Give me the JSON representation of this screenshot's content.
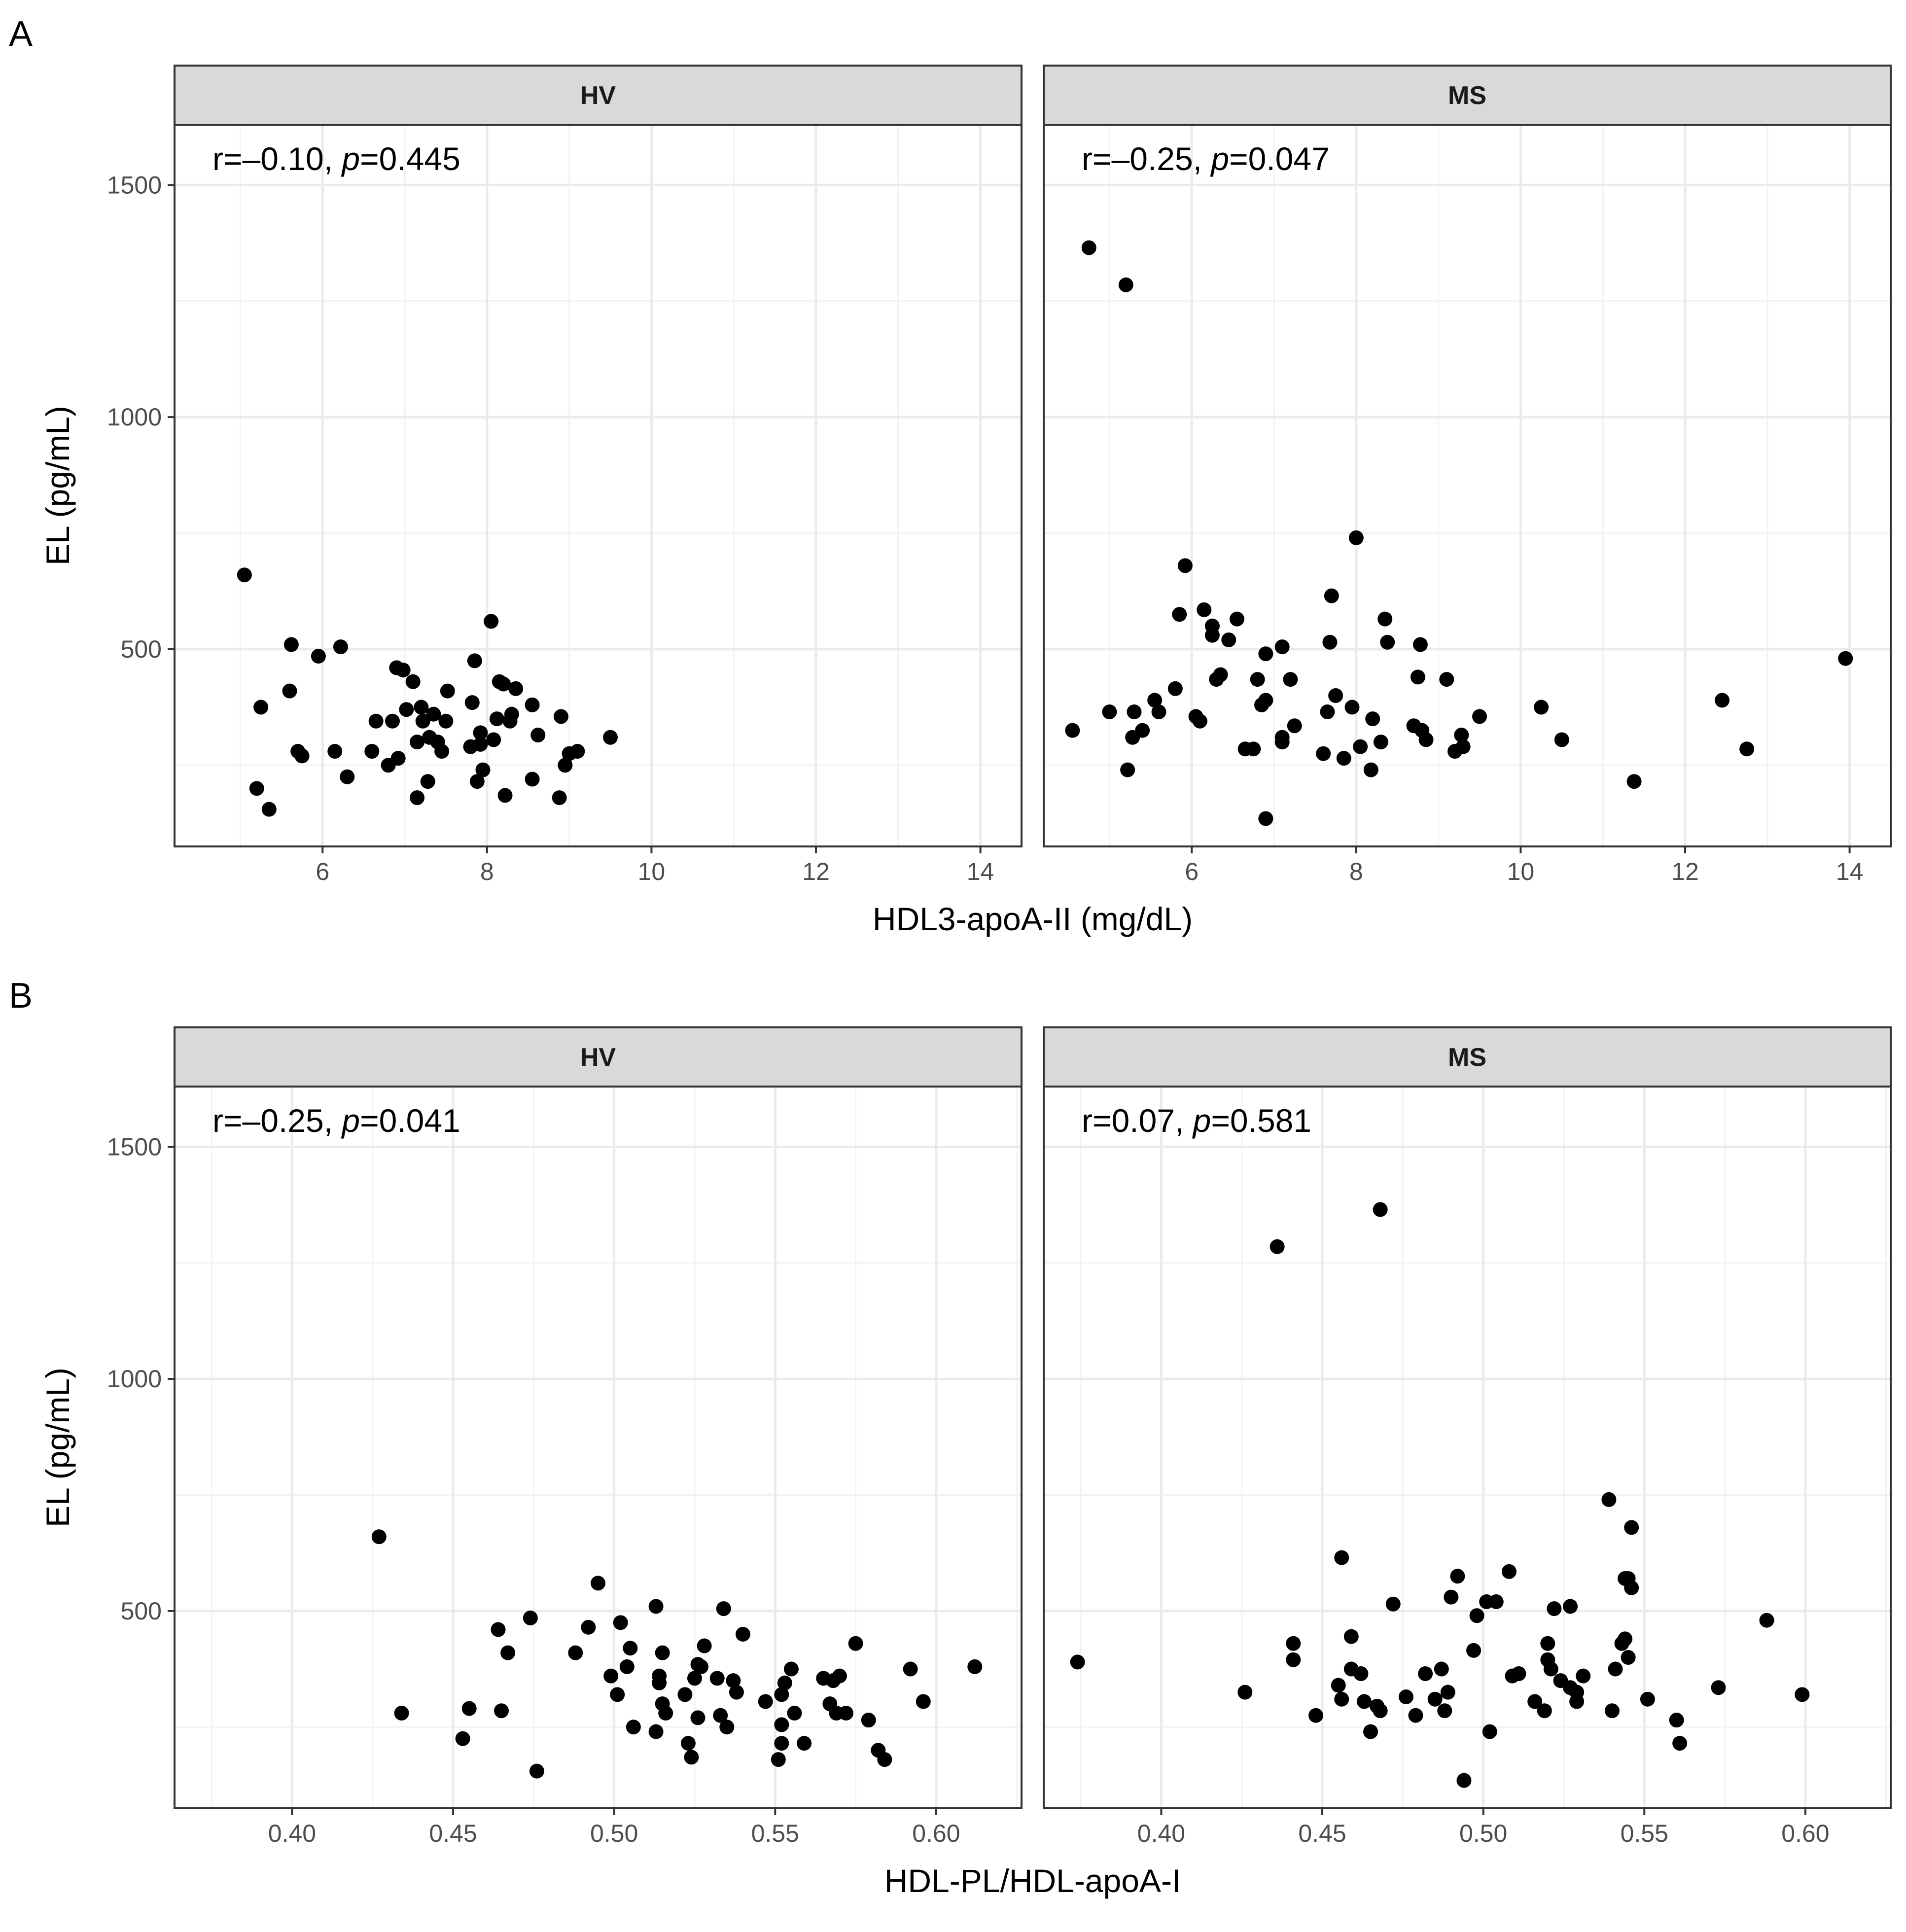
{
  "chart_data": [
    {
      "type": "scatter",
      "panel_label": "A",
      "xlabel": "HDL3-apoA-II (mg/dL)",
      "ylabel": "EL (pg/mL)",
      "xlim": [
        4.2,
        14.5
      ],
      "ylim": [
        75,
        1630
      ],
      "x_ticks": [
        6,
        8,
        10,
        12,
        14
      ],
      "x_tick_labels": [
        "6",
        "8",
        "10",
        "12",
        "14"
      ],
      "y_ticks": [
        500,
        1000,
        1500
      ],
      "y_tick_labels": [
        "500",
        "1000",
        "1500"
      ],
      "grid": true,
      "facets": [
        {
          "name": "HV",
          "annotation": {
            "prefix": "r=–0.10, ",
            "p_symbol": "p",
            "suffix": "=0.445"
          },
          "points": [
            [
              5.05,
              660
            ],
            [
              5.2,
              200
            ],
            [
              5.25,
              375
            ],
            [
              5.35,
              155
            ],
            [
              5.6,
              410
            ],
            [
              5.62,
              510
            ],
            [
              5.7,
              280
            ],
            [
              5.75,
              270
            ],
            [
              5.95,
              485
            ],
            [
              6.15,
              280
            ],
            [
              6.22,
              505
            ],
            [
              6.3,
              225
            ],
            [
              6.6,
              280
            ],
            [
              6.65,
              345
            ],
            [
              6.8,
              250
            ],
            [
              6.85,
              345
            ],
            [
              6.9,
              460
            ],
            [
              6.92,
              265
            ],
            [
              6.98,
              455
            ],
            [
              7.02,
              370
            ],
            [
              7.1,
              430
            ],
            [
              7.15,
              180
            ],
            [
              7.15,
              300
            ],
            [
              7.2,
              375
            ],
            [
              7.22,
              345
            ],
            [
              7.28,
              215
            ],
            [
              7.3,
              310
            ],
            [
              7.35,
              360
            ],
            [
              7.4,
              300
            ],
            [
              7.45,
              280
            ],
            [
              7.5,
              345
            ],
            [
              7.52,
              410
            ],
            [
              7.8,
              290
            ],
            [
              7.82,
              385
            ],
            [
              7.85,
              475
            ],
            [
              7.88,
              215
            ],
            [
              7.92,
              320
            ],
            [
              7.92,
              295
            ],
            [
              7.95,
              240
            ],
            [
              8.05,
              560
            ],
            [
              8.08,
              305
            ],
            [
              8.12,
              350
            ],
            [
              8.15,
              430
            ],
            [
              8.2,
              425
            ],
            [
              8.22,
              185
            ],
            [
              8.28,
              345
            ],
            [
              8.3,
              360
            ],
            [
              8.35,
              415
            ],
            [
              8.55,
              380
            ],
            [
              8.55,
              220
            ],
            [
              8.62,
              315
            ],
            [
              8.88,
              180
            ],
            [
              8.9,
              355
            ],
            [
              8.95,
              250
            ],
            [
              9.0,
              275
            ],
            [
              9.1,
              280
            ],
            [
              9.5,
              310
            ]
          ]
        },
        {
          "name": "MS",
          "annotation": {
            "prefix": "r=–0.25, ",
            "p_symbol": "p",
            "suffix": "=0.047"
          },
          "points": [
            [
              4.55,
              325
            ],
            [
              4.75,
              1365
            ],
            [
              5.0,
              365
            ],
            [
              5.2,
              1285
            ],
            [
              5.22,
              240
            ],
            [
              5.28,
              310
            ],
            [
              5.3,
              365
            ],
            [
              5.4,
              325
            ],
            [
              5.55,
              390
            ],
            [
              5.6,
              365
            ],
            [
              5.8,
              415
            ],
            [
              5.85,
              575
            ],
            [
              5.92,
              680
            ],
            [
              6.05,
              355
            ],
            [
              6.1,
              345
            ],
            [
              6.15,
              585
            ],
            [
              6.25,
              550
            ],
            [
              6.25,
              530
            ],
            [
              6.3,
              435
            ],
            [
              6.35,
              445
            ],
            [
              6.45,
              520
            ],
            [
              6.55,
              565
            ],
            [
              6.65,
              285
            ],
            [
              6.75,
              285
            ],
            [
              6.8,
              435
            ],
            [
              6.85,
              380
            ],
            [
              6.9,
              390
            ],
            [
              6.9,
              490
            ],
            [
              6.9,
              135
            ],
            [
              7.1,
              505
            ],
            [
              7.1,
              310
            ],
            [
              7.1,
              300
            ],
            [
              7.2,
              435
            ],
            [
              7.25,
              335
            ],
            [
              7.6,
              275
            ],
            [
              7.65,
              365
            ],
            [
              7.68,
              515
            ],
            [
              7.7,
              615
            ],
            [
              7.75,
              400
            ],
            [
              7.85,
              265
            ],
            [
              7.95,
              375
            ],
            [
              8.0,
              740
            ],
            [
              8.05,
              290
            ],
            [
              8.18,
              240
            ],
            [
              8.2,
              350
            ],
            [
              8.3,
              300
            ],
            [
              8.35,
              565
            ],
            [
              8.38,
              515
            ],
            [
              8.7,
              335
            ],
            [
              8.75,
              440
            ],
            [
              8.78,
              510
            ],
            [
              8.8,
              325
            ],
            [
              8.85,
              305
            ],
            [
              9.1,
              435
            ],
            [
              9.2,
              280
            ],
            [
              9.28,
              315
            ],
            [
              9.3,
              290
            ],
            [
              9.5,
              355
            ],
            [
              10.25,
              375
            ],
            [
              10.5,
              305
            ],
            [
              11.38,
              215
            ],
            [
              12.45,
              390
            ],
            [
              12.75,
              285
            ],
            [
              13.95,
              480
            ]
          ]
        }
      ]
    },
    {
      "type": "scatter",
      "panel_label": "B",
      "xlabel": "HDL-PL/HDL-apoA-I",
      "ylabel": "EL (pg/mL)",
      "xlim": [
        0.3635,
        0.6265
      ],
      "ylim": [
        75,
        1630
      ],
      "x_ticks": [
        0.4,
        0.45,
        0.5,
        0.55,
        0.6
      ],
      "x_tick_labels": [
        "0.40",
        "0.45",
        "0.50",
        "0.55",
        "0.60"
      ],
      "y_ticks": [
        500,
        1000,
        1500
      ],
      "y_tick_labels": [
        "500",
        "1000",
        "1500"
      ],
      "grid": true,
      "facets": [
        {
          "name": "HV",
          "annotation": {
            "prefix": "r=–0.25, ",
            "p_symbol": "p",
            "suffix": "=0.041"
          },
          "points": [
            [
              0.427,
              660
            ],
            [
              0.434,
              280
            ],
            [
              0.453,
              225
            ],
            [
              0.455,
              290
            ],
            [
              0.464,
              460
            ],
            [
              0.465,
              285
            ],
            [
              0.467,
              410
            ],
            [
              0.474,
              485
            ],
            [
              0.476,
              155
            ],
            [
              0.488,
              410
            ],
            [
              0.492,
              465
            ],
            [
              0.495,
              560
            ],
            [
              0.499,
              360
            ],
            [
              0.501,
              320
            ],
            [
              0.502,
              475
            ],
            [
              0.504,
              380
            ],
            [
              0.505,
              420
            ],
            [
              0.506,
              250
            ],
            [
              0.513,
              240
            ],
            [
              0.513,
              510
            ],
            [
              0.514,
              360
            ],
            [
              0.514,
              345
            ],
            [
              0.515,
              410
            ],
            [
              0.515,
              300
            ],
            [
              0.516,
              280
            ],
            [
              0.522,
              320
            ],
            [
              0.523,
              215
            ],
            [
              0.524,
              185
            ],
            [
              0.525,
              355
            ],
            [
              0.526,
              385
            ],
            [
              0.526,
              270
            ],
            [
              0.527,
              380
            ],
            [
              0.528,
              425
            ],
            [
              0.532,
              355
            ],
            [
              0.533,
              275
            ],
            [
              0.534,
              505
            ],
            [
              0.535,
              250
            ],
            [
              0.537,
              350
            ],
            [
              0.538,
              325
            ],
            [
              0.54,
              450
            ],
            [
              0.547,
              305
            ],
            [
              0.551,
              180
            ],
            [
              0.552,
              215
            ],
            [
              0.552,
              255
            ],
            [
              0.552,
              320
            ],
            [
              0.553,
              345
            ],
            [
              0.555,
              375
            ],
            [
              0.556,
              280
            ],
            [
              0.559,
              215
            ],
            [
              0.565,
              355
            ],
            [
              0.567,
              300
            ],
            [
              0.568,
              350
            ],
            [
              0.569,
              280
            ],
            [
              0.57,
              360
            ],
            [
              0.572,
              280
            ],
            [
              0.575,
              430
            ],
            [
              0.579,
              265
            ],
            [
              0.582,
              200
            ],
            [
              0.584,
              180
            ],
            [
              0.592,
              375
            ],
            [
              0.596,
              305
            ],
            [
              0.612,
              380
            ]
          ]
        },
        {
          "name": "MS",
          "annotation": {
            "prefix": "r=0.07, ",
            "p_symbol": "p",
            "suffix": "=0.581"
          },
          "points": [
            [
              0.374,
              390
            ],
            [
              0.426,
              325
            ],
            [
              0.436,
              1285
            ],
            [
              0.441,
              430
            ],
            [
              0.441,
              395
            ],
            [
              0.448,
              275
            ],
            [
              0.455,
              340
            ],
            [
              0.456,
              310
            ],
            [
              0.456,
              615
            ],
            [
              0.459,
              375
            ],
            [
              0.459,
              445
            ],
            [
              0.462,
              365
            ],
            [
              0.463,
              305
            ],
            [
              0.465,
              240
            ],
            [
              0.467,
              295
            ],
            [
              0.468,
              1365
            ],
            [
              0.468,
              285
            ],
            [
              0.472,
              515
            ],
            [
              0.476,
              315
            ],
            [
              0.479,
              275
            ],
            [
              0.482,
              365
            ],
            [
              0.485,
              310
            ],
            [
              0.487,
              375
            ],
            [
              0.488,
              285
            ],
            [
              0.489,
              325
            ],
            [
              0.49,
              530
            ],
            [
              0.492,
              575
            ],
            [
              0.494,
              135
            ],
            [
              0.497,
              415
            ],
            [
              0.498,
              490
            ],
            [
              0.501,
              520
            ],
            [
              0.502,
              240
            ],
            [
              0.504,
              520
            ],
            [
              0.508,
              585
            ],
            [
              0.509,
              360
            ],
            [
              0.511,
              365
            ],
            [
              0.516,
              305
            ],
            [
              0.519,
              285
            ],
            [
              0.52,
              430
            ],
            [
              0.52,
              395
            ],
            [
              0.521,
              375
            ],
            [
              0.522,
              505
            ],
            [
              0.524,
              350
            ],
            [
              0.527,
              510
            ],
            [
              0.527,
              335
            ],
            [
              0.529,
              305
            ],
            [
              0.529,
              325
            ],
            [
              0.531,
              360
            ],
            [
              0.539,
              740
            ],
            [
              0.54,
              285
            ],
            [
              0.541,
              375
            ],
            [
              0.543,
              430
            ],
            [
              0.544,
              570
            ],
            [
              0.544,
              440
            ],
            [
              0.545,
              570
            ],
            [
              0.545,
              400
            ],
            [
              0.546,
              680
            ],
            [
              0.546,
              550
            ],
            [
              0.551,
              310
            ],
            [
              0.56,
              265
            ],
            [
              0.561,
              215
            ],
            [
              0.573,
              335
            ],
            [
              0.588,
              480
            ],
            [
              0.599,
              320
            ]
          ]
        }
      ]
    }
  ]
}
